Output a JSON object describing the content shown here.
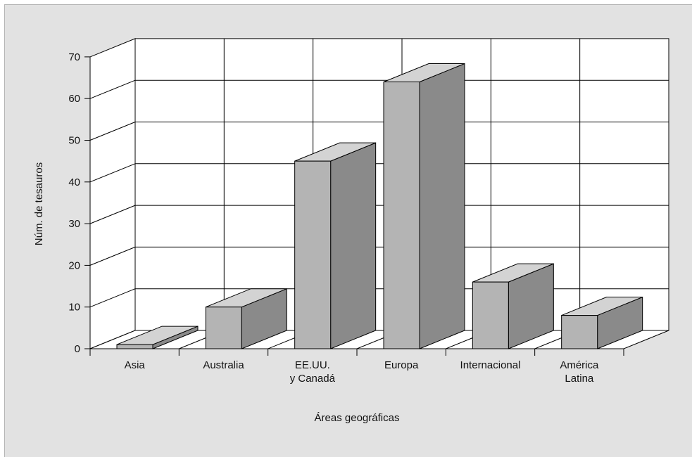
{
  "chart_data": {
    "type": "bar",
    "categories": [
      "Asia",
      "Australia",
      "EE.UU.\ny Canadá",
      "Europa",
      "Internacional",
      "América\nLatina"
    ],
    "values": [
      1,
      10,
      45,
      64,
      16,
      8
    ],
    "xlabel": "Áreas geográficas",
    "ylabel": "Núm. de tesauros",
    "ylim": [
      0,
      70
    ],
    "yticks": [
      "0",
      "10",
      "20",
      "30",
      "40",
      "50",
      "60",
      "70"
    ],
    "grid": true,
    "colors": {
      "panel": "#e2e2e2",
      "plot_back": "#ffffff",
      "bar_front": "#b4b4b4",
      "bar_top": "#d3d3d3",
      "bar_side": "#8a8a8a",
      "line": "#000000"
    }
  }
}
